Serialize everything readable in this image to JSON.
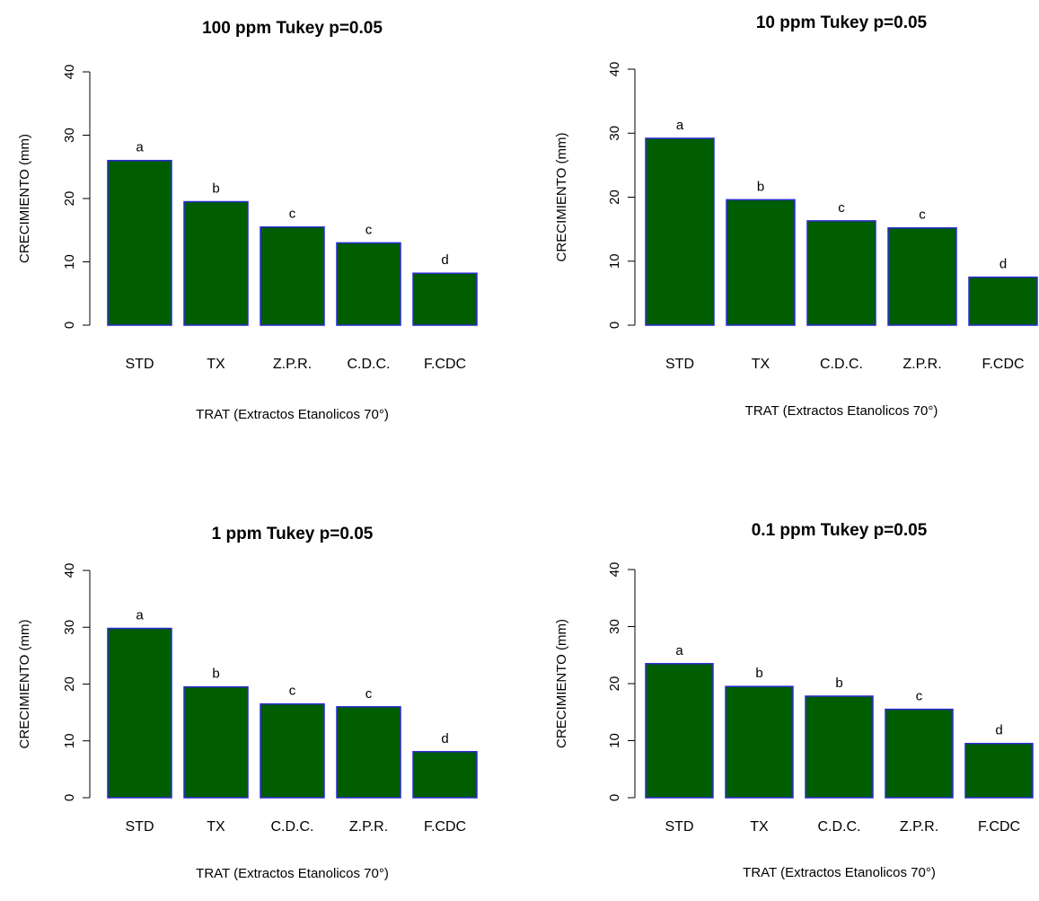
{
  "colors": {
    "bar_fill": "#005d00",
    "bar_stroke": "#2b2bd6",
    "axis": "#000000",
    "text": "#000000"
  },
  "chart_data": [
    {
      "type": "bar",
      "title": "100 ppm  Tukey p=0.05",
      "xlabel": "TRAT (Extractos Etanolicos 70°)",
      "ylabel": "CRECIMIENTO (mm)",
      "ylim": [
        0,
        40
      ],
      "yticks": [
        "0",
        "10",
        "20",
        "30",
        "40"
      ],
      "categories": [
        "STD",
        "TX",
        "Z.P.R.",
        "C.D.C.",
        "F.CDC"
      ],
      "values": [
        26,
        19.5,
        15.5,
        13,
        8.2
      ],
      "labels": [
        "a",
        "b",
        "c",
        "c",
        "d"
      ],
      "grid": false,
      "legend": "none"
    },
    {
      "type": "bar",
      "title": "10 ppm  Tukey p=0.05",
      "xlabel": "TRAT (Extractos Etanolicos 70°)",
      "ylabel": "CRECIMIENTO (mm)",
      "ylim": [
        0,
        40
      ],
      "yticks": [
        "0",
        "10",
        "20",
        "30",
        "40"
      ],
      "categories": [
        "STD",
        "TX",
        "C.D.C.",
        "Z.P.R.",
        "F.CDC"
      ],
      "values": [
        29.2,
        19.6,
        16.3,
        15.2,
        7.5
      ],
      "labels": [
        "a",
        "b",
        "c",
        "c",
        "d"
      ],
      "grid": false,
      "legend": "none"
    },
    {
      "type": "bar",
      "title": "1 ppm  Tukey p=0.05",
      "xlabel": "TRAT (Extractos Etanolicos 70°)",
      "ylabel": "CRECIMIENTO (mm)",
      "ylim": [
        0,
        40
      ],
      "yticks": [
        "0",
        "10",
        "20",
        "30",
        "40"
      ],
      "categories": [
        "STD",
        "TX",
        "C.D.C.",
        "Z.P.R.",
        "F.CDC"
      ],
      "values": [
        29.8,
        19.5,
        16.5,
        16,
        8.1
      ],
      "labels": [
        "a",
        "b",
        "c",
        "c",
        "d"
      ],
      "grid": false,
      "legend": "none"
    },
    {
      "type": "bar",
      "title": "0.1 ppm  Tukey p=0.05",
      "xlabel": "TRAT (Extractos Etanolicos 70°)",
      "ylabel": "CRECIMIENTO (mm)",
      "ylim": [
        0,
        40
      ],
      "yticks": [
        "0",
        "10",
        "20",
        "30",
        "40"
      ],
      "categories": [
        "STD",
        "TX",
        "C.D.C.",
        "Z.P.R.",
        "F.CDC"
      ],
      "values": [
        23.5,
        19.5,
        17.8,
        15.5,
        9.5
      ],
      "labels": [
        "a",
        "b",
        "b",
        "c",
        "d"
      ],
      "grid": false,
      "legend": "none"
    }
  ]
}
